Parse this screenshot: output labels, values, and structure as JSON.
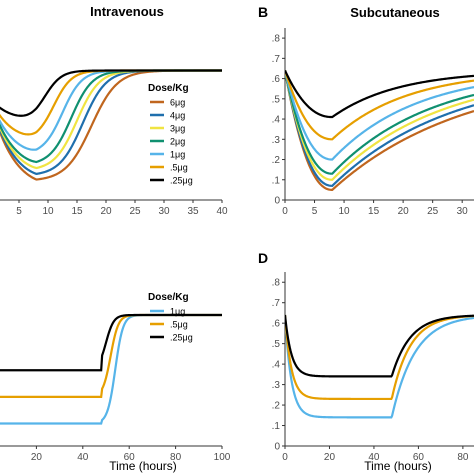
{
  "chart_data": [
    {
      "panel": "A",
      "type": "line",
      "title": "Intravenous",
      "letter": "",
      "xlabel": "",
      "xlim": [
        0,
        40
      ],
      "ylim": [
        0,
        0.85
      ],
      "xticks": [
        "5",
        "10",
        "15",
        "20",
        "25",
        "30",
        "35",
        "40"
      ],
      "legend_title": "Dose/Kg",
      "legend_position": "center-right",
      "grid": false,
      "series": [
        {
          "name": "6μg",
          "color": "#c0661e",
          "min": 0.03,
          "t_rise": 17.5,
          "slope": 0.45
        },
        {
          "name": "4μg",
          "color": "#1f6fad",
          "min": 0.06,
          "t_rise": 16.0,
          "slope": 0.5
        },
        {
          "name": "3μg",
          "color": "#f0e442",
          "min": 0.09,
          "t_rise": 15.0,
          "slope": 0.52
        },
        {
          "name": "2μg",
          "color": "#109070",
          "min": 0.12,
          "t_rise": 14.0,
          "slope": 0.55
        },
        {
          "name": "1μg",
          "color": "#56b4e9",
          "min": 0.18,
          "t_rise": 12.5,
          "slope": 0.6
        },
        {
          "name": ".5μg",
          "color": "#e69f00",
          "min": 0.26,
          "t_rise": 11.0,
          "slope": 0.65
        },
        {
          "name": ".25μg",
          "color": "#000000",
          "min": 0.37,
          "t_rise": 9.5,
          "slope": 0.7
        }
      ]
    },
    {
      "panel": "B",
      "type": "line",
      "title": "Subcutaneous",
      "letter": "B",
      "xlabel": "",
      "xlim": [
        0,
        32
      ],
      "ylim": [
        0,
        0.85
      ],
      "xticks": [
        "0",
        "5",
        "10",
        "15",
        "20",
        "25",
        "30"
      ],
      "yticks": [
        "0",
        ".1",
        ".2",
        ".3",
        ".4",
        ".5",
        ".6",
        ".7",
        ".8"
      ],
      "grid": false,
      "series": [
        {
          "name": "6μg",
          "color": "#c0661e",
          "min": 0.05,
          "k": 0.045
        },
        {
          "name": "4μg",
          "color": "#1f6fad",
          "min": 0.07,
          "k": 0.05
        },
        {
          "name": "3μg",
          "color": "#f0e442",
          "min": 0.1,
          "k": 0.055
        },
        {
          "name": "2μg",
          "color": "#109070",
          "min": 0.13,
          "k": 0.06
        },
        {
          "name": "1μg",
          "color": "#56b4e9",
          "min": 0.2,
          "k": 0.07
        },
        {
          "name": ".5μg",
          "color": "#e69f00",
          "min": 0.3,
          "k": 0.08
        },
        {
          "name": ".25μg",
          "color": "#000000",
          "min": 0.41,
          "k": 0.09
        }
      ]
    },
    {
      "panel": "C",
      "type": "line",
      "title": "",
      "letter": "",
      "xlabel": "Time (hours)",
      "xlim": [
        0,
        100
      ],
      "ylim": [
        0,
        0.85
      ],
      "xticks": [
        "20",
        "40",
        "60",
        "80",
        "100"
      ],
      "legend_title": "Dose/Kg",
      "legend_position": "right",
      "grid": false,
      "series": [
        {
          "name": "1μg",
          "color": "#56b4e9",
          "plateau": 0.11
        },
        {
          "name": ".5μg",
          "color": "#e69f00",
          "plateau": 0.24
        },
        {
          "name": ".25μg",
          "color": "#000000",
          "plateau": 0.37
        }
      ]
    },
    {
      "panel": "D",
      "type": "line",
      "title": "",
      "letter": "D",
      "xlabel": "Time (hours)",
      "xlim": [
        0,
        85
      ],
      "ylim": [
        0,
        0.85
      ],
      "xticks": [
        "0",
        "20",
        "40",
        "60",
        "80"
      ],
      "yticks": [
        "0",
        ".1",
        ".2",
        ".3",
        ".4",
        ".5",
        ".6",
        ".7",
        ".8"
      ],
      "grid": false,
      "series": [
        {
          "name": "1μg",
          "color": "#56b4e9",
          "plateau": 0.14
        },
        {
          "name": ".5μg",
          "color": "#e69f00",
          "plateau": 0.23
        },
        {
          "name": ".25μg",
          "color": "#000000",
          "plateau": 0.34
        }
      ]
    }
  ],
  "baseline": 0.64
}
